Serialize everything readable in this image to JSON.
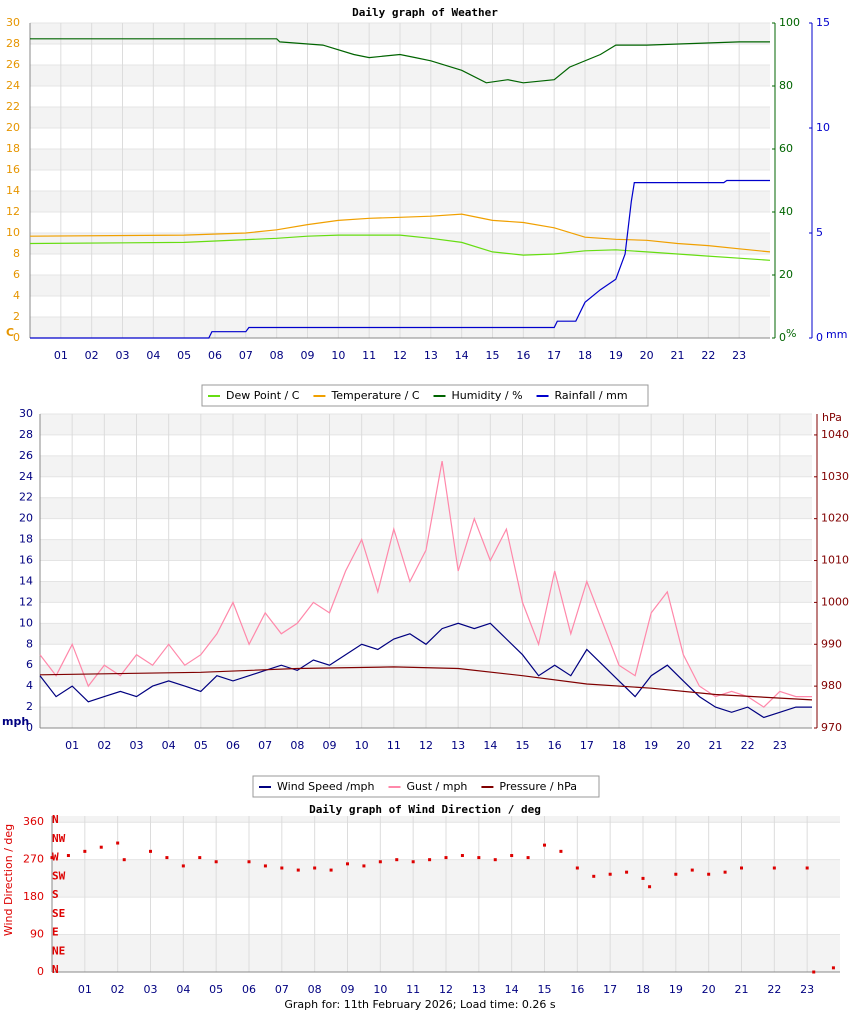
{
  "chart_data": [
    {
      "type": "line",
      "title": "Daily graph of Weather",
      "xlim": [
        0,
        24
      ],
      "xticks": [
        {
          "value": 1,
          "label": "01"
        },
        {
          "value": 2,
          "label": "02"
        },
        {
          "value": 3,
          "label": "03"
        },
        {
          "value": 4,
          "label": "04"
        },
        {
          "value": 5,
          "label": "05"
        },
        {
          "value": 6,
          "label": "06"
        },
        {
          "value": 7,
          "label": "07"
        },
        {
          "value": 8,
          "label": "08"
        },
        {
          "value": 9,
          "label": "09"
        },
        {
          "value": 10,
          "label": "10"
        },
        {
          "value": 11,
          "label": "11"
        },
        {
          "value": 12,
          "label": "12"
        },
        {
          "value": 13,
          "label": "13"
        },
        {
          "value": 14,
          "label": "14"
        },
        {
          "value": 15,
          "label": "15"
        },
        {
          "value": 16,
          "label": "16"
        },
        {
          "value": 17,
          "label": "17"
        },
        {
          "value": 18,
          "label": "18"
        },
        {
          "value": 19,
          "label": "19"
        },
        {
          "value": 20,
          "label": "20"
        },
        {
          "value": 21,
          "label": "21"
        },
        {
          "value": 22,
          "label": "22"
        },
        {
          "value": 23,
          "label": "23"
        }
      ],
      "ylabel": "C",
      "ylim": [
        0,
        30
      ],
      "yticks": [
        0,
        2,
        4,
        6,
        8,
        10,
        12,
        14,
        16,
        18,
        20,
        22,
        24,
        26,
        28,
        30
      ],
      "ycolor": "#e69500",
      "y2label": "%",
      "y2lim": [
        0,
        100
      ],
      "y2ticks": [
        0,
        20,
        40,
        60,
        80,
        100
      ],
      "y2color": "#006400",
      "y3label": "mm",
      "y3lim": [
        0,
        15
      ],
      "y3ticks": [
        0,
        5,
        10,
        15
      ],
      "y3color": "#0000cc",
      "grid": true,
      "legend": "bottom",
      "series": [
        {
          "name": "Dew Point / C",
          "color": "#66dd11",
          "x": [
            0,
            5,
            8,
            9,
            10,
            12,
            13,
            14,
            15,
            16,
            17,
            18,
            19,
            20,
            21,
            22,
            23,
            24
          ],
          "values": [
            9.0,
            9.1,
            9.5,
            9.7,
            9.8,
            9.8,
            9.5,
            9.1,
            8.2,
            7.9,
            8.0,
            8.3,
            8.4,
            8.2,
            8.0,
            7.8,
            7.6,
            7.4
          ]
        },
        {
          "name": "Temperature / C",
          "color": "#f0a000",
          "x": [
            0,
            5,
            7,
            8,
            9,
            10,
            11,
            12,
            13,
            14,
            15,
            16,
            17,
            18,
            19,
            20,
            21,
            22,
            23,
            24
          ],
          "values": [
            9.7,
            9.8,
            10.0,
            10.3,
            10.8,
            11.2,
            11.4,
            11.5,
            11.6,
            11.8,
            11.2,
            11.0,
            10.5,
            9.6,
            9.4,
            9.3,
            9.0,
            8.8,
            8.5,
            8.2
          ]
        },
        {
          "name": "Humidity / %",
          "color": "#006400",
          "axis": "y2",
          "x": [
            0,
            8,
            8.1,
            9.5,
            10.5,
            11,
            12,
            12.5,
            13,
            14,
            14.8,
            15.5,
            16,
            17,
            17.5,
            18.5,
            19,
            20,
            23,
            24
          ],
          "values": [
            95,
            95,
            94,
            93,
            90,
            89,
            90,
            89,
            88,
            85,
            81,
            82,
            81,
            82,
            86,
            90,
            93,
            93,
            94,
            94
          ]
        },
        {
          "name": "Rainfall / mm",
          "color": "#0000cc",
          "axis": "y3",
          "x": [
            0,
            5.8,
            5.9,
            7,
            7.1,
            17,
            17.1,
            17.7,
            18,
            18.5,
            19,
            19.3,
            19.5,
            19.6,
            22.5,
            22.6,
            24
          ],
          "values": [
            0,
            0,
            0.3,
            0.3,
            0.5,
            0.5,
            0.8,
            0.8,
            1.7,
            2.3,
            2.8,
            4.0,
            6.5,
            7.4,
            7.4,
            7.5,
            7.5
          ]
        }
      ]
    },
    {
      "type": "line",
      "xlim": [
        0,
        24
      ],
      "xticks": [
        {
          "value": 1,
          "label": "01"
        },
        {
          "value": 2,
          "label": "02"
        },
        {
          "value": 3,
          "label": "03"
        },
        {
          "value": 4,
          "label": "04"
        },
        {
          "value": 5,
          "label": "05"
        },
        {
          "value": 6,
          "label": "06"
        },
        {
          "value": 7,
          "label": "07"
        },
        {
          "value": 8,
          "label": "08"
        },
        {
          "value": 9,
          "label": "09"
        },
        {
          "value": 10,
          "label": "10"
        },
        {
          "value": 11,
          "label": "11"
        },
        {
          "value": 12,
          "label": "12"
        },
        {
          "value": 13,
          "label": "13"
        },
        {
          "value": 14,
          "label": "14"
        },
        {
          "value": 15,
          "label": "15"
        },
        {
          "value": 16,
          "label": "16"
        },
        {
          "value": 17,
          "label": "17"
        },
        {
          "value": 18,
          "label": "18"
        },
        {
          "value": 19,
          "label": "19"
        },
        {
          "value": 20,
          "label": "20"
        },
        {
          "value": 21,
          "label": "21"
        },
        {
          "value": 22,
          "label": "22"
        },
        {
          "value": 23,
          "label": "23"
        }
      ],
      "ylabel": "mph",
      "ylim": [
        0,
        30
      ],
      "yticks": [
        0,
        2,
        4,
        6,
        8,
        10,
        12,
        14,
        16,
        18,
        20,
        22,
        24,
        26,
        28,
        30
      ],
      "ycolor": "#000080",
      "y2label": "hPa",
      "y2lim": [
        970,
        1045
      ],
      "y2ticks": [
        970,
        980,
        990,
        1000,
        1010,
        1020,
        1030,
        1040
      ],
      "y2color": "#800000",
      "grid": true,
      "legend": "bottom",
      "series": [
        {
          "name": "Wind Speed /mph",
          "color": "#000080",
          "x": [
            0,
            0.5,
            1,
            1.5,
            2,
            2.5,
            3,
            3.5,
            4,
            4.5,
            5,
            5.5,
            6,
            6.5,
            7,
            7.5,
            8,
            8.5,
            9,
            9.5,
            10,
            10.5,
            11,
            11.5,
            12,
            12.5,
            13,
            13.5,
            14,
            14.5,
            15,
            15.5,
            16,
            16.5,
            17,
            17.5,
            18,
            18.5,
            19,
            19.5,
            20,
            20.5,
            21,
            21.5,
            22,
            22.5,
            23,
            23.5,
            24
          ],
          "values": [
            5,
            3,
            4,
            2.5,
            3,
            3.5,
            3,
            4,
            4.5,
            4,
            3.5,
            5,
            4.5,
            5,
            5.5,
            6,
            5.5,
            6.5,
            6,
            7,
            8,
            7.5,
            8.5,
            9,
            8,
            9.5,
            10,
            9.5,
            10,
            8.5,
            7,
            5,
            6,
            5,
            7.5,
            6,
            4.5,
            3,
            5,
            6,
            4.5,
            3,
            2,
            1.5,
            2,
            1,
            1.5,
            2,
            2
          ]
        },
        {
          "name": "Gust / mph",
          "color": "#ff88aa",
          "x": [
            0,
            0.5,
            1,
            1.5,
            2,
            2.5,
            3,
            3.5,
            4,
            4.5,
            5,
            5.5,
            6,
            6.5,
            7,
            7.5,
            8,
            8.5,
            9,
            9.5,
            10,
            10.5,
            11,
            11.5,
            12,
            12.5,
            13,
            13.5,
            14,
            14.5,
            15,
            15.5,
            16,
            16.5,
            17,
            17.5,
            18,
            18.5,
            19,
            19.5,
            20,
            20.5,
            21,
            21.5,
            22,
            22.5,
            23,
            23.5,
            24
          ],
          "values": [
            7,
            5,
            8,
            4,
            6,
            5,
            7,
            6,
            8,
            6,
            7,
            9,
            12,
            8,
            11,
            9,
            10,
            12,
            11,
            15,
            18,
            13,
            19,
            14,
            17,
            25.5,
            15,
            20,
            16,
            19,
            12,
            8,
            15,
            9,
            14,
            10,
            6,
            5,
            11,
            13,
            7,
            4,
            3,
            3.5,
            3,
            2,
            3.5,
            3,
            3
          ]
        },
        {
          "name": "Pressure / hPa",
          "color": "#800000",
          "axis": "y2",
          "x": [
            0,
            5,
            8,
            11,
            13,
            15,
            17,
            19,
            21,
            24
          ],
          "values": [
            982.7,
            983.3,
            984.2,
            984.6,
            984.2,
            982.5,
            980.5,
            979.5,
            978,
            976.7
          ]
        }
      ]
    },
    {
      "type": "scatter",
      "title": "Daily graph of Wind Direction / deg",
      "xlim": [
        0,
        24
      ],
      "xticks": [
        {
          "value": 1,
          "label": "01"
        },
        {
          "value": 2,
          "label": "02"
        },
        {
          "value": 3,
          "label": "03"
        },
        {
          "value": 4,
          "label": "04"
        },
        {
          "value": 5,
          "label": "05"
        },
        {
          "value": 6,
          "label": "06"
        },
        {
          "value": 7,
          "label": "07"
        },
        {
          "value": 8,
          "label": "08"
        },
        {
          "value": 9,
          "label": "09"
        },
        {
          "value": 10,
          "label": "10"
        },
        {
          "value": 11,
          "label": "11"
        },
        {
          "value": 12,
          "label": "12"
        },
        {
          "value": 13,
          "label": "13"
        },
        {
          "value": 14,
          "label": "14"
        },
        {
          "value": 15,
          "label": "15"
        },
        {
          "value": 16,
          "label": "16"
        },
        {
          "value": 17,
          "label": "17"
        },
        {
          "value": 18,
          "label": "18"
        },
        {
          "value": 19,
          "label": "19"
        },
        {
          "value": 20,
          "label": "20"
        },
        {
          "value": 21,
          "label": "21"
        },
        {
          "value": 22,
          "label": "22"
        },
        {
          "value": 23,
          "label": "23"
        }
      ],
      "ylabel": "Wind Direction / deg",
      "ylim": [
        0,
        375
      ],
      "yticks": [
        0,
        90,
        180,
        270,
        360
      ],
      "ycolor": "#dd0000",
      "compass": [
        {
          "value": 360,
          "label": "N"
        },
        {
          "value": 315,
          "label": "NW"
        },
        {
          "value": 270,
          "label": "W"
        },
        {
          "value": 225,
          "label": "SW"
        },
        {
          "value": 180,
          "label": "S"
        },
        {
          "value": 135,
          "label": "SE"
        },
        {
          "value": 90,
          "label": "E"
        },
        {
          "value": 45,
          "label": "NE"
        },
        {
          "value": 0,
          "label": "N"
        }
      ],
      "grid": true,
      "color": "#dd0000",
      "x": [
        0,
        0.5,
        1,
        1.5,
        2,
        2.2,
        3,
        3.5,
        4,
        4.5,
        5,
        6,
        6.5,
        7,
        7.5,
        8,
        8.5,
        9,
        9.5,
        10,
        10.5,
        11,
        11.5,
        12,
        12.5,
        13,
        13.5,
        14,
        14.5,
        15,
        15.5,
        16,
        16.5,
        17,
        17.5,
        18,
        18.2,
        19,
        19.5,
        20,
        20.5,
        21,
        22,
        23,
        23.2,
        23.8
      ],
      "values": [
        275,
        280,
        290,
        300,
        310,
        270,
        290,
        275,
        255,
        275,
        265,
        265,
        255,
        250,
        245,
        250,
        245,
        260,
        255,
        265,
        270,
        265,
        270,
        275,
        280,
        275,
        270,
        280,
        275,
        305,
        290,
        250,
        230,
        235,
        240,
        225,
        205,
        235,
        245,
        235,
        240,
        250,
        250,
        250,
        0,
        10
      ]
    }
  ],
  "footer": "Graph for: 11th February 2026; Load time: 0.26 s"
}
